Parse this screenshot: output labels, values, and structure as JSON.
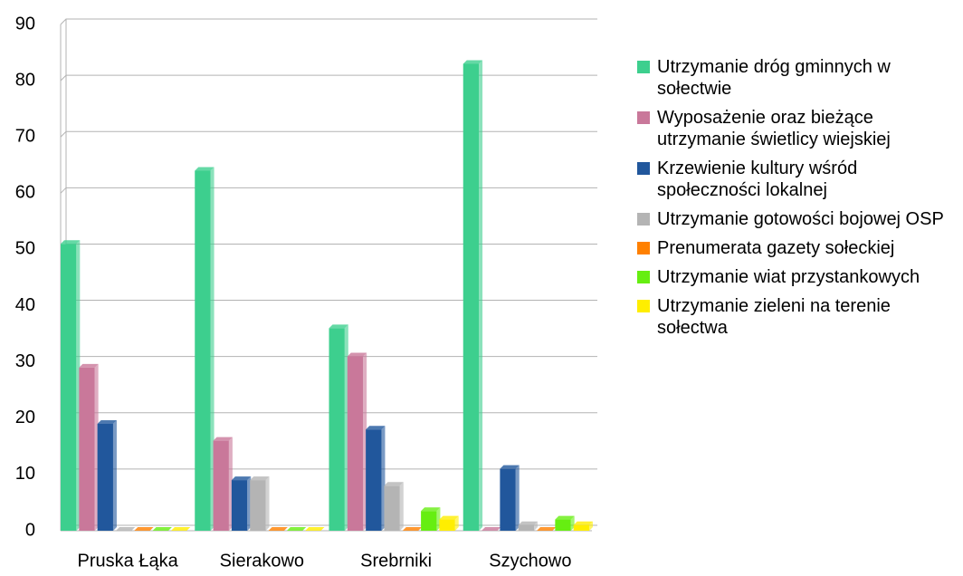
{
  "chart_data": {
    "type": "bar",
    "categories": [
      "Pruska Łąka",
      "Sierakowo",
      "Srebrniki",
      "Szychowo"
    ],
    "series": [
      {
        "name": "Utrzymanie dróg gminnych w sołectwie",
        "color": "#3dcf8e",
        "values": [
          51,
          64,
          36,
          83
        ]
      },
      {
        "name": "Wyposażenie oraz bieżące utrzymanie świetlicy wiejskiej",
        "color": "#c9789a",
        "values": [
          29,
          16,
          31,
          0
        ]
      },
      {
        "name": "Krzewienie kultury wśród społeczności lokalnej",
        "color": "#21579c",
        "values": [
          19,
          9,
          18,
          11
        ]
      },
      {
        "name": "Utrzymanie gotowości bojowej OSP",
        "color": "#b4b4b4",
        "values": [
          0,
          9,
          8,
          1
        ]
      },
      {
        "name": "Prenumerata gazety sołeckiej",
        "color": "#ff8000",
        "values": [
          0,
          0,
          0,
          0
        ]
      },
      {
        "name": "Utrzymanie wiat przystankowych",
        "color": "#66ee11",
        "values": [
          0,
          0,
          3.5,
          2
        ]
      },
      {
        "name": "Utrzymanie zieleni na terenie sołectwa",
        "color": "#ffee00",
        "values": [
          0,
          0,
          2,
          1
        ]
      }
    ],
    "ylim": [
      0,
      90
    ],
    "yticks": [
      0,
      10,
      20,
      30,
      40,
      50,
      60,
      70,
      80,
      90
    ],
    "grid": true,
    "legend": "right"
  }
}
